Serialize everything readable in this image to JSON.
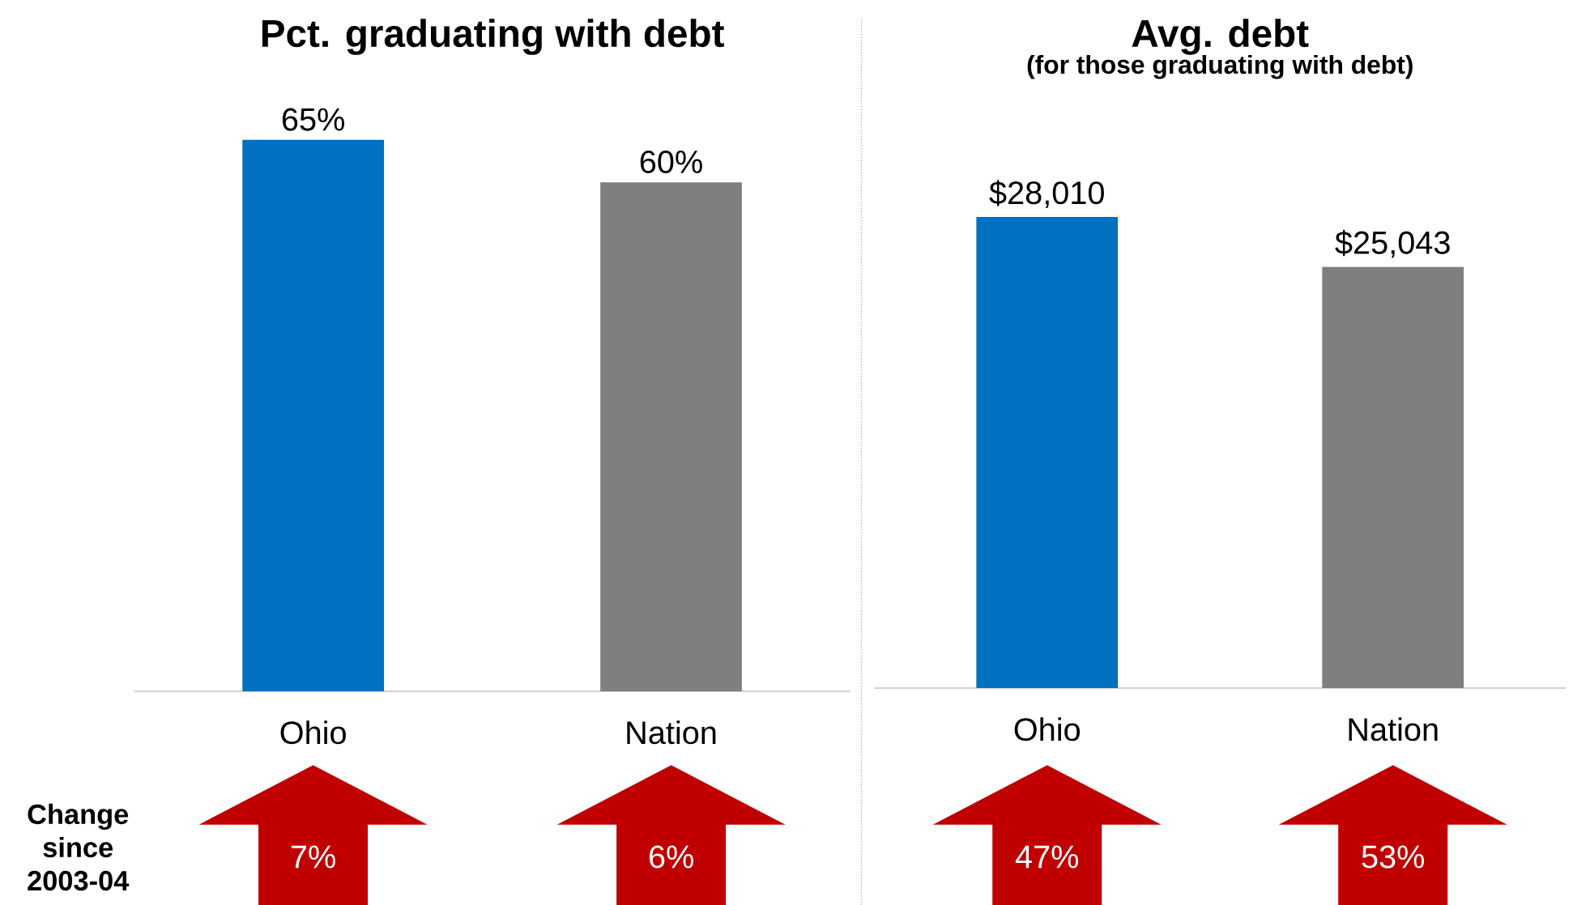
{
  "chart_data": [
    {
      "type": "bar",
      "title": "Pct. graduating with debt",
      "categories": [
        "Ohio",
        "Nation"
      ],
      "values": [
        65,
        60
      ],
      "colors": [
        "#0070c0",
        "#7f7f7f"
      ],
      "value_labels": [
        "65%",
        "60%"
      ],
      "annotations": [
        "Change since 2003-04",
        "7%",
        "6%"
      ]
    },
    {
      "type": "bar",
      "title": "Avg. debt",
      "subtitle": "(for those graduating with debt)",
      "categories": [
        "Ohio",
        "Nation"
      ],
      "values": [
        28010,
        25043
      ],
      "colors": [
        "#0070c0",
        "#7f7f7f"
      ],
      "value_labels": [
        "$28,010",
        "$25,043"
      ],
      "annotations": [
        "47%",
        "53%"
      ]
    }
  ]
}
